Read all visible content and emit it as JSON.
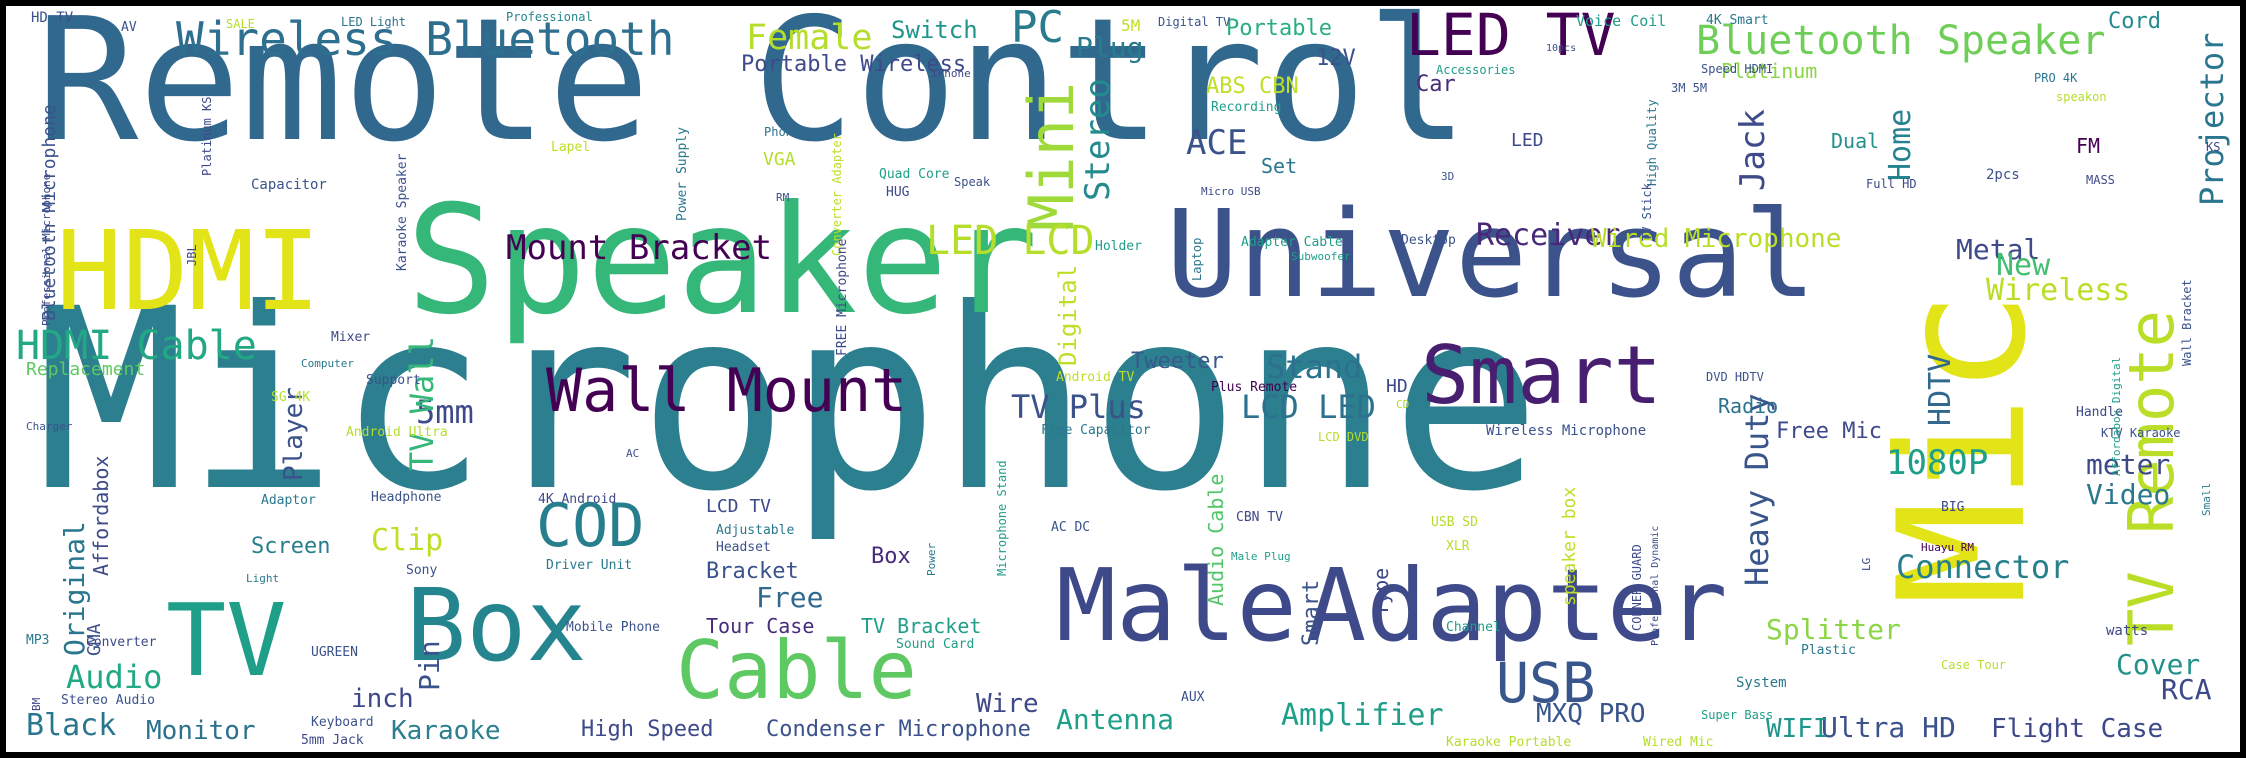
{
  "wordcloud": {
    "words": [
      {
        "text": "Microphone",
        "color": "#2c7f8e"
      },
      {
        "text": "Remote Control",
        "color": "#31688e"
      },
      {
        "text": "Mic",
        "color": "#e3e418"
      },
      {
        "text": "Speaker",
        "color": "#35b779"
      },
      {
        "text": "Universal",
        "color": "#3b528b"
      },
      {
        "text": "Adapter",
        "color": "#3e4a89"
      },
      {
        "text": "Male",
        "color": "#3e4989"
      },
      {
        "text": "Box",
        "color": "#25858e"
      },
      {
        "text": "Cable",
        "color": "#5ec962"
      },
      {
        "text": "TV",
        "color": "#1f9e89"
      },
      {
        "text": "HDMI",
        "color": "#e3e418"
      },
      {
        "text": "LED TV",
        "color": "#440154"
      },
      {
        "text": "Smart",
        "color": "#481f70"
      },
      {
        "text": "Wall Mount",
        "color": "#440154"
      },
      {
        "text": "TV Remote",
        "color": "#bade28"
      },
      {
        "text": "USB",
        "color": "#39568c"
      },
      {
        "text": "Wireless Bluetooth",
        "color": "#2e6e8e"
      },
      {
        "text": "Bluetooth Speaker",
        "color": "#6ece58"
      },
      {
        "text": "HDMI Cable",
        "color": "#22a884"
      },
      {
        "text": "COD",
        "color": "#277f8e"
      },
      {
        "text": "PC",
        "color": "#287c8e"
      },
      {
        "text": "Mini",
        "color": "#9fda3a"
      },
      {
        "text": "Female",
        "color": "#b5de2b"
      },
      {
        "text": "Mount Bracket",
        "color": "#440154"
      },
      {
        "text": "LED LCD",
        "color": "#b5de2b"
      },
      {
        "text": "Stereo",
        "color": "#238a8d"
      },
      {
        "text": "Receiver",
        "color": "#482878"
      },
      {
        "text": "Wired Microphone",
        "color": "#b8de29"
      },
      {
        "text": "Metal",
        "color": "#3e4a89"
      },
      {
        "text": "New",
        "color": "#44bf70"
      },
      {
        "text": "Wireless",
        "color": "#bade28"
      },
      {
        "text": "Projector",
        "color": "#2a768e"
      },
      {
        "text": "Jack",
        "color": "#3e4a89"
      },
      {
        "text": "Home",
        "color": "#26828e"
      },
      {
        "text": "ACE",
        "color": "#3b528b"
      },
      {
        "text": "Switch",
        "color": "#1f968b"
      },
      {
        "text": "Plug",
        "color": "#287c8e"
      },
      {
        "text": "Portable Wireless",
        "color": "#3e4a89"
      },
      {
        "text": "Portable",
        "color": "#29af7f"
      },
      {
        "text": "12V",
        "color": "#3b528b"
      },
      {
        "text": "Car",
        "color": "#472c7a"
      },
      {
        "text": "ABS CBN",
        "color": "#bddf26"
      },
      {
        "text": "Platinum",
        "color": "#8bd646"
      },
      {
        "text": "Cord",
        "color": "#238a8d"
      },
      {
        "text": "Stand",
        "color": "#2c718e"
      },
      {
        "text": "LCD LED",
        "color": "#2c718e"
      },
      {
        "text": "TV Plus",
        "color": "#3b528b"
      },
      {
        "text": "5mm",
        "color": "#3e4989"
      },
      {
        "text": "TV Wall",
        "color": "#35b779"
      },
      {
        "text": "Player",
        "color": "#3b528b"
      },
      {
        "text": "Digital",
        "color": "#bddf26"
      },
      {
        "text": "Tweeter",
        "color": "#38598c"
      },
      {
        "text": "1080P",
        "color": "#1f9e89"
      },
      {
        "text": "Heavy Duty",
        "color": "#39568c"
      },
      {
        "text": "HDTV",
        "color": "#31688e"
      },
      {
        "text": "meter",
        "color": "#3e4989"
      },
      {
        "text": "Video",
        "color": "#2a788e"
      },
      {
        "text": "Connector",
        "color": "#277f8e"
      },
      {
        "text": "Splitter",
        "color": "#8bd646"
      },
      {
        "text": "Cover",
        "color": "#21918c"
      },
      {
        "text": "RCA",
        "color": "#3e4989"
      },
      {
        "text": "Ultra HD",
        "color": "#3b528b"
      },
      {
        "text": "Flight Case",
        "color": "#3e4989"
      },
      {
        "text": "WIFI",
        "color": "#1f968b"
      },
      {
        "text": "MXQ PRO",
        "color": "#39568c"
      },
      {
        "text": "Amplifier",
        "color": "#1f9e89"
      },
      {
        "text": "Antenna",
        "color": "#1fa088"
      },
      {
        "text": "Wire",
        "color": "#3e4a89"
      },
      {
        "text": "Condenser Microphone",
        "color": "#3b528b"
      },
      {
        "text": "High Speed",
        "color": "#3e4989"
      },
      {
        "text": "Karaoke",
        "color": "#2c7f8e"
      },
      {
        "text": "Monitor",
        "color": "#2c718e"
      },
      {
        "text": "Black",
        "color": "#2a768e"
      },
      {
        "text": "Audio",
        "color": "#22a884"
      },
      {
        "text": "inch",
        "color": "#3e4989"
      },
      {
        "text": "Pin",
        "color": "#3b528b"
      },
      {
        "text": "Clip",
        "color": "#bddf26"
      },
      {
        "text": "Screen",
        "color": "#277f8e"
      },
      {
        "text": "Original",
        "color": "#2a768e"
      },
      {
        "text": "Affordabox",
        "color": "#3e4a89"
      },
      {
        "text": "GMA",
        "color": "#3b528b"
      },
      {
        "text": "Replacement",
        "color": "#5ec962"
      },
      {
        "text": "Bluetooth Microphone",
        "color": "#3b528b"
      },
      {
        "text": "LCD TV",
        "color": "#3e4989"
      },
      {
        "text": "Bracket",
        "color": "#3b528b"
      },
      {
        "text": "Free",
        "color": "#31688e"
      },
      {
        "text": "Tour Case",
        "color": "#472c7a"
      },
      {
        "text": "TV Bracket",
        "color": "#1f9e89"
      },
      {
        "text": "Audio Cable",
        "color": "#52c569"
      },
      {
        "text": "Smart",
        "color": "#3b528b"
      },
      {
        "text": "Type",
        "color": "#3e4989"
      },
      {
        "text": "speaker box",
        "color": "#bddf26"
      },
      {
        "text": "Free Mic",
        "color": "#3e4989"
      },
      {
        "text": "Radio",
        "color": "#2c718e"
      },
      {
        "text": "HD",
        "color": "#3e4989"
      },
      {
        "text": "LED",
        "color": "#3e4989"
      },
      {
        "text": "Set",
        "color": "#2a788e"
      },
      {
        "text": "Dual",
        "color": "#21918c"
      },
      {
        "text": "FM",
        "color": "#440154"
      },
      {
        "text": "Box",
        "color": "#472c7a"
      }
    ],
    "small_words": [
      {
        "text": "HD TV",
        "color": "#3b528b"
      },
      {
        "text": "AV",
        "color": "#3b528b"
      },
      {
        "text": "SALE",
        "color": "#b5de2b"
      },
      {
        "text": "LED Light",
        "color": "#2c718e"
      },
      {
        "text": "Professional",
        "color": "#25858e"
      },
      {
        "text": "5M",
        "color": "#bddf26"
      },
      {
        "text": "Digital TV",
        "color": "#3b528b"
      },
      {
        "text": "Voice Coil",
        "color": "#1f9e89"
      },
      {
        "text": "4K Smart",
        "color": "#2a788e"
      },
      {
        "text": "iPhone",
        "color": "#3e4989"
      },
      {
        "text": "10pcs",
        "color": "#3b528b"
      },
      {
        "text": "Speed HDMI",
        "color": "#3b528b"
      },
      {
        "text": "PRO 4K",
        "color": "#2a768e"
      },
      {
        "text": "speakon",
        "color": "#b5de2b"
      },
      {
        "text": "Accessories",
        "color": "#1f9e89"
      },
      {
        "text": "3M 5M",
        "color": "#3b528b"
      },
      {
        "text": "Recording",
        "color": "#1f9e89"
      },
      {
        "text": "Platinum KS",
        "color": "#3e4989"
      },
      {
        "text": "Lapel",
        "color": "#bddf26"
      },
      {
        "text": "Power Supply",
        "color": "#2a788e"
      },
      {
        "text": "Phone",
        "color": "#2c718e"
      },
      {
        "text": "Converter Adapter",
        "color": "#bddf26"
      },
      {
        "text": "VGA",
        "color": "#b5de2b"
      },
      {
        "text": "Quad Core",
        "color": "#1fa088"
      },
      {
        "text": "HUG",
        "color": "#3e4989"
      },
      {
        "text": "Speak",
        "color": "#3b528b"
      },
      {
        "text": "Micro USB",
        "color": "#3e4989"
      },
      {
        "text": "3D",
        "color": "#3b528b"
      },
      {
        "text": "High Quality",
        "color": "#2a768e"
      },
      {
        "text": "TV Stick",
        "color": "#3b528b"
      },
      {
        "text": "Full HD",
        "color": "#3e4989"
      },
      {
        "text": "2pcs",
        "color": "#3b528b"
      },
      {
        "text": "MASS",
        "color": "#3e4989"
      },
      {
        "text": "KS",
        "color": "#3e4989"
      },
      {
        "text": "Capacitor",
        "color": "#3b528b"
      },
      {
        "text": "RM",
        "color": "#3b528b"
      },
      {
        "text": "Karaoke Speaker",
        "color": "#3b528b"
      },
      {
        "text": "JBL",
        "color": "#3e4989"
      },
      {
        "text": "Professional Microphone",
        "color": "#3e4989"
      },
      {
        "text": "FREE Microphone",
        "color": "#3e4989"
      },
      {
        "text": "Holder",
        "color": "#1f9e89"
      },
      {
        "text": "Laptop",
        "color": "#2a788e"
      },
      {
        "text": "Adapter Cable",
        "color": "#1f9e89"
      },
      {
        "text": "Desktop",
        "color": "#3b528b"
      },
      {
        "text": "Subwoofer",
        "color": "#1f9e89"
      },
      {
        "text": "Wall Bracket",
        "color": "#3b528b"
      },
      {
        "text": "Mixer",
        "color": "#3e4989"
      },
      {
        "text": "Computer",
        "color": "#2a788e"
      },
      {
        "text": "Support",
        "color": "#3b528b"
      },
      {
        "text": "SG 4K",
        "color": "#b5de2b"
      },
      {
        "text": "Android TV",
        "color": "#bddf26"
      },
      {
        "text": "Android Ultra",
        "color": "#b5de2b"
      },
      {
        "text": "Plus Remote",
        "color": "#440154"
      },
      {
        "text": "Free Capacitor",
        "color": "#2a788e"
      },
      {
        "text": "LCD DVD",
        "color": "#b5de2b"
      },
      {
        "text": "CD",
        "color": "#b5de2b"
      },
      {
        "text": "DVD HDTV",
        "color": "#3b528b"
      },
      {
        "text": "Wireless Microphone",
        "color": "#3b528b"
      },
      {
        "text": "Handle",
        "color": "#3e4989"
      },
      {
        "text": "KTV Karaoke",
        "color": "#3b528b"
      },
      {
        "text": "Affordabox Digital",
        "color": "#1f9e89"
      },
      {
        "text": "Small",
        "color": "#2a788e"
      },
      {
        "text": "Charger",
        "color": "#3b528b"
      },
      {
        "text": "AC",
        "color": "#3b528b"
      },
      {
        "text": "Adaptor",
        "color": "#2a788e"
      },
      {
        "text": "Headphone",
        "color": "#3b528b"
      },
      {
        "text": "4K Android",
        "color": "#3e4989"
      },
      {
        "text": "Adjustable",
        "color": "#2a788e"
      },
      {
        "text": "Headset",
        "color": "#3b528b"
      },
      {
        "text": "Driver Unit",
        "color": "#2a788e"
      },
      {
        "text": "Power",
        "color": "#2a788e"
      },
      {
        "text": "Microphone Stand",
        "color": "#1f9e89"
      },
      {
        "text": "AC DC",
        "color": "#3b528b"
      },
      {
        "text": "CBN TV",
        "color": "#3e4989"
      },
      {
        "text": "Male Plug",
        "color": "#1f9e89"
      },
      {
        "text": "USB SD",
        "color": "#b5de2b"
      },
      {
        "text": "XLR",
        "color": "#b5de2b"
      },
      {
        "text": "CORNER GUARD",
        "color": "#3e4989"
      },
      {
        "text": "Professional Dynamic",
        "color": "#3e4989"
      },
      {
        "text": "Huayu RM",
        "color": "#440154"
      },
      {
        "text": "BIG",
        "color": "#3e4989"
      },
      {
        "text": "LG",
        "color": "#3e4989"
      },
      {
        "text": "Light",
        "color": "#2a788e"
      },
      {
        "text": "Sony",
        "color": "#3b528b"
      },
      {
        "text": "MP3",
        "color": "#2a788e"
      },
      {
        "text": "Converter",
        "color": "#3e4989"
      },
      {
        "text": "UGREEN",
        "color": "#3b528b"
      },
      {
        "text": "Mobile Phone",
        "color": "#3b528b"
      },
      {
        "text": "Sound Card",
        "color": "#1f9e89"
      },
      {
        "text": "Channel",
        "color": "#1f9e89"
      },
      {
        "text": "Plastic",
        "color": "#2a788e"
      },
      {
        "text": "Case Tour",
        "color": "#b5de2b"
      },
      {
        "text": "watts",
        "color": "#3e4989"
      },
      {
        "text": "System",
        "color": "#2a788e"
      },
      {
        "text": "BM",
        "color": "#3e4989"
      },
      {
        "text": "Stereo Audio",
        "color": "#3b528b"
      },
      {
        "text": "Keyboard",
        "color": "#3b528b"
      },
      {
        "text": "5mm Jack",
        "color": "#3e4989"
      },
      {
        "text": "AUX",
        "color": "#3b528b"
      },
      {
        "text": "Super Bass",
        "color": "#1f9e89"
      },
      {
        "text": "Karaoke Portable",
        "color": "#b5de2b"
      },
      {
        "text": "Wired Mic",
        "color": "#b5de2b"
      }
    ]
  }
}
